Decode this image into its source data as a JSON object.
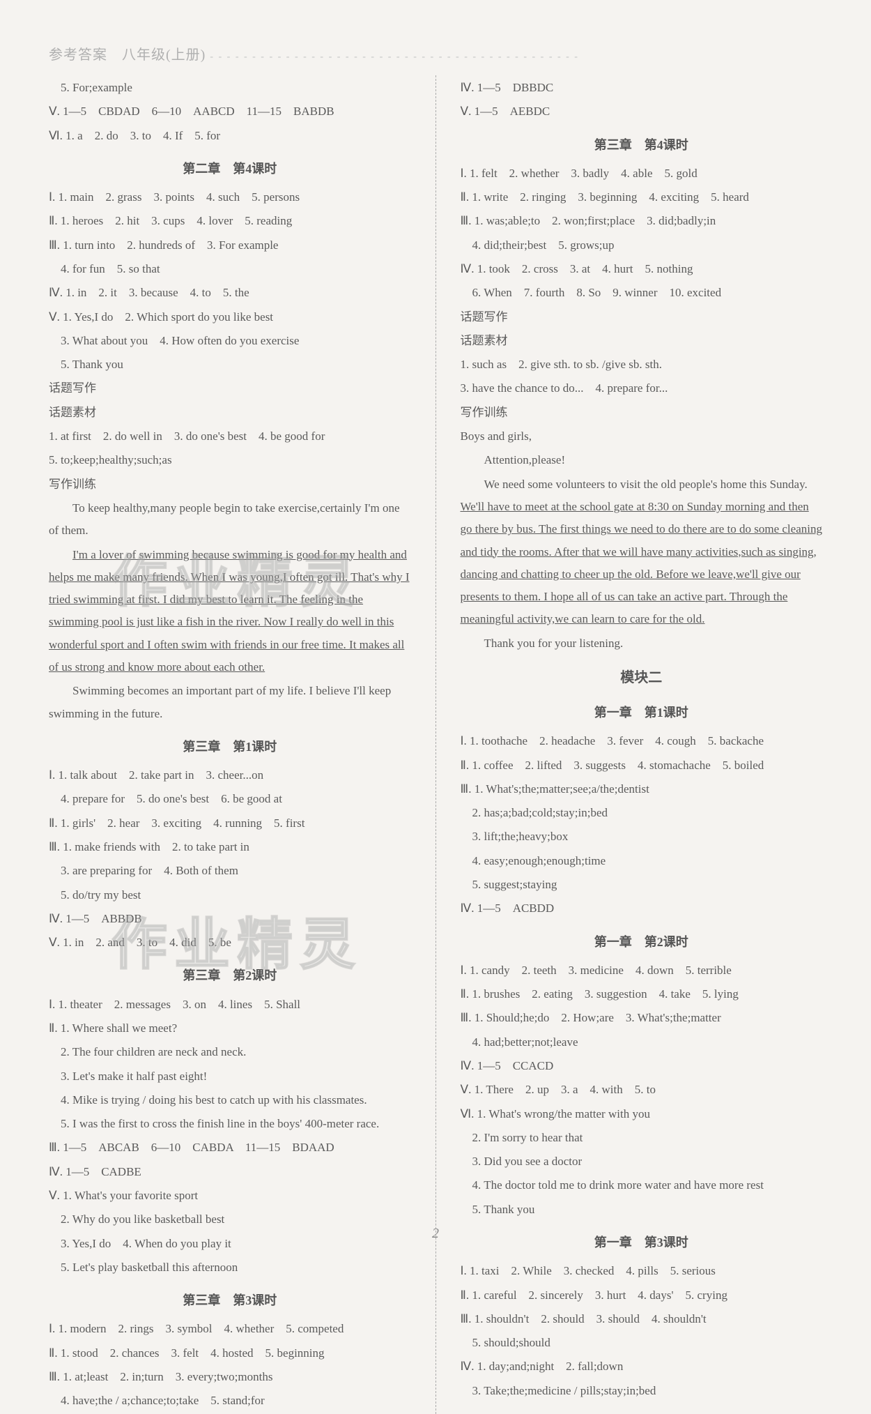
{
  "header": "参考答案　八年级(上册)",
  "header_dots": "- - - - - - - - - - - - - - - - - - - - - - - - - - - - - - - - - - - - - - - - - - - -",
  "page_number": "2",
  "watermark": "作业精灵",
  "left": {
    "pre_lines": [
      "　5. For;example",
      "Ⅴ. 1—5　CBDAD　6—10　AABCD　11—15　BABDB",
      "Ⅵ. 1. a　2. do　3. to　4. If　5. for"
    ],
    "s1_title": "第二章　第4课时",
    "s1_lines": [
      "Ⅰ. 1. main　2. grass　3. points　4. such　5. persons",
      "Ⅱ. 1. heroes　2. hit　3. cups　4. lover　5. reading",
      "Ⅲ. 1. turn into　2. hundreds of　3. For example",
      "　4. for fun　5. so that",
      "Ⅳ. 1. in　2. it　3. because　4. to　5. the",
      "Ⅴ. 1. Yes,I do　2. Which sport do you like best",
      "　3. What about you　4. How often do you exercise",
      "　5. Thank you",
      "话题写作",
      "话题素材",
      "1. at first　2. do well in　3. do one's best　4. be good for",
      "5. to;keep;healthy;such;as",
      "写作训练"
    ],
    "essay1_p1": "To keep healthy,many people begin to take exercise,certainly I'm one of them.",
    "essay1_u": [
      "I'm a lover of swimming because swimming is good for my health and helps me make many friends. When I was young,I often got ill. That's why I tried swimming at first. I did my best to learn it. The feeling in the swimming pool is just like a fish in the river. Now I really do well in this wonderful sport and I often swim with friends in our free time. It makes all of us strong and know more about each other."
    ],
    "essay1_p2": "Swimming becomes an important part of my life. I believe I'll keep swimming in the future.",
    "s2_title": "第三章　第1课时",
    "s2_lines": [
      "Ⅰ. 1. talk about　2. take part in　3. cheer...on",
      "　4. prepare for　5. do one's best　6. be good at",
      "Ⅱ. 1. girls'　2. hear　3. exciting　4. running　5. first",
      "Ⅲ. 1. make friends with　2. to take part in",
      "　3. are preparing for　4. Both of them",
      "　5. do/try my best",
      "Ⅳ. 1—5　ABBDB",
      "Ⅴ. 1. in　2. and　3. to　4. did　5. be"
    ],
    "s3_title": "第三章　第2课时",
    "s3_lines": [
      "Ⅰ. 1. theater　2. messages　3. on　4. lines　5. Shall",
      "Ⅱ. 1. Where shall we meet?",
      "　2. The four children are neck and neck.",
      "　3. Let's make it half past eight!",
      "　4. Mike is trying / doing his best to catch up with his classmates.",
      "　5. I was the first to cross the finish line in the boys' 400-meter race.",
      "Ⅲ. 1—5　ABCAB　6—10　CABDA　11—15　BDAAD",
      "Ⅳ. 1—5　CADBE",
      "Ⅴ. 1. What's your favorite sport",
      "　2. Why do you like basketball best",
      "　3. Yes,I do　4. When do you play it",
      "　5. Let's play basketball this afternoon"
    ],
    "s4_title": "第三章　第3课时",
    "s4_lines": [
      "Ⅰ. 1. modern　2. rings　3. symbol　4. whether　5. competed",
      "Ⅱ. 1. stood　2. chances　3. felt　4. hosted　5. beginning",
      "Ⅲ. 1. at;least　2. in;turn　3. every;two;months",
      "　4. have;the / a;chance;to;take　5. stand;for"
    ]
  },
  "right": {
    "pre_lines": [
      "Ⅳ. 1—5　DBBDC",
      "Ⅴ. 1—5　AEBDC"
    ],
    "s1_title": "第三章　第4课时",
    "s1_lines": [
      "Ⅰ. 1. felt　2. whether　3. badly　4. able　5. gold",
      "Ⅱ. 1. write　2. ringing　3. beginning　4. exciting　5. heard",
      "Ⅲ. 1. was;able;to　2. won;first;place　3. did;badly;in",
      "　4. did;their;best　5. grows;up",
      "Ⅳ. 1. took　2. cross　3. at　4. hurt　5. nothing",
      "　6. When　7. fourth　8. So　9. winner　10. excited",
      "话题写作",
      "话题素材",
      "1. such as　2. give sth. to sb. /give sb. sth.",
      "3. have the chance to do...　4. prepare for...",
      "写作训练",
      "Boys and girls,",
      "　　Attention,please!"
    ],
    "essay2_p1": "We need some volunteers to visit the old people's home this Sunday.",
    "essay2_u": "We'll have to meet at the school gate at 8:30 on Sunday morning and then go there by bus. The first things we need to do there are to do some cleaning and tidy the rooms. After that we will have many activities,such as singing, dancing and chatting to cheer up the old. Before we leave,we'll give our presents to them. I hope all of us can take an active part. Through the meaningful activity,we can learn to care for the old.",
    "essay2_p2": "Thank you for your listening.",
    "mod_title": "模块二",
    "s2_title": "第一章　第1课时",
    "s2_lines": [
      "Ⅰ. 1. toothache　2. headache　3. fever　4. cough　5. backache",
      "Ⅱ. 1. coffee　2. lifted　3. suggests　4. stomachache　5. boiled",
      "Ⅲ. 1. What's;the;matter;see;a/the;dentist",
      "　2. has;a;bad;cold;stay;in;bed",
      "　3. lift;the;heavy;box",
      "　4. easy;enough;enough;time",
      "　5. suggest;staying",
      "Ⅳ. 1—5　ACBDD"
    ],
    "s3_title": "第一章　第2课时",
    "s3_lines": [
      "Ⅰ. 1. candy　2. teeth　3. medicine　4. down　5. terrible",
      "Ⅱ. 1. brushes　2. eating　3. suggestion　4. take　5. lying",
      "Ⅲ. 1. Should;he;do　2. How;are　3. What's;the;matter",
      "　4. had;better;not;leave",
      "Ⅳ. 1—5　CCACD",
      "Ⅴ. 1. There　2. up　3. a　4. with　5. to",
      "Ⅵ. 1. What's wrong/the matter with you",
      "　2. I'm sorry to hear that",
      "　3. Did you see a doctor",
      "　4. The doctor told me to drink more water and have more rest",
      "　5. Thank you"
    ],
    "s4_title": "第一章　第3课时",
    "s4_lines": [
      "Ⅰ. 1. taxi　2. While　3. checked　4. pills　5. serious",
      "Ⅱ. 1. careful　2. sincerely　3. hurt　4. days'　5. crying",
      "Ⅲ. 1. shouldn't　2. should　3. should　4. shouldn't",
      "　5. should;should",
      "Ⅳ. 1. day;and;night　2. fall;down",
      "　3. Take;the;medicine / pills;stay;in;bed"
    ]
  }
}
